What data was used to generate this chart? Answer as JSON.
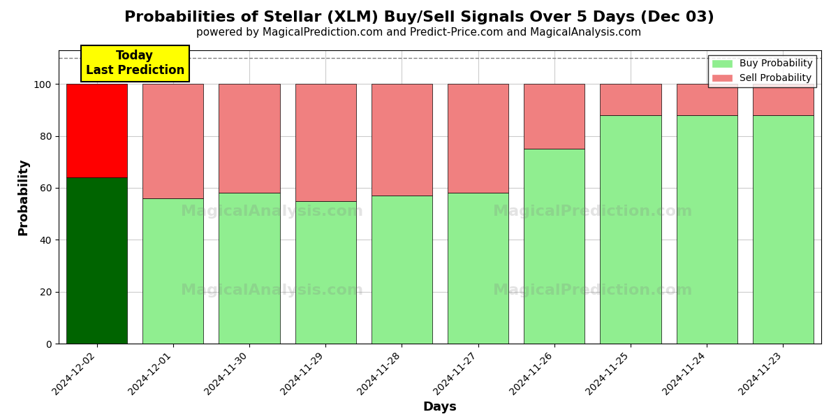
{
  "title": "Probabilities of Stellar (XLM) Buy/Sell Signals Over 5 Days (Dec 03)",
  "subtitle": "powered by MagicalPrediction.com and Predict-Price.com and MagicalAnalysis.com",
  "xlabel": "Days",
  "ylabel": "Probability",
  "dates": [
    "2024-12-02",
    "2024-12-01",
    "2024-11-30",
    "2024-11-29",
    "2024-11-28",
    "2024-11-27",
    "2024-11-26",
    "2024-11-25",
    "2024-11-24",
    "2024-11-23"
  ],
  "buy_values": [
    64,
    56,
    58,
    55,
    57,
    58,
    75,
    88,
    88,
    88
  ],
  "sell_values": [
    36,
    44,
    42,
    45,
    43,
    42,
    25,
    12,
    12,
    12
  ],
  "today_index": 0,
  "today_buy_color": "#006400",
  "today_sell_color": "#FF0000",
  "buy_color": "#90EE90",
  "sell_color": "#F08080",
  "today_label": "Today\nLast Prediction",
  "legend_buy": "Buy Probability",
  "legend_sell": "Sell Probability",
  "ylim": [
    0,
    113
  ],
  "dashed_line_y": 110,
  "bar_edge_color": "black",
  "bar_edge_width": 0.5,
  "grid_color": "#cccccc",
  "background_color": "white",
  "title_fontsize": 16,
  "subtitle_fontsize": 11,
  "label_fontsize": 13,
  "tick_fontsize": 10,
  "legend_fontsize": 10
}
